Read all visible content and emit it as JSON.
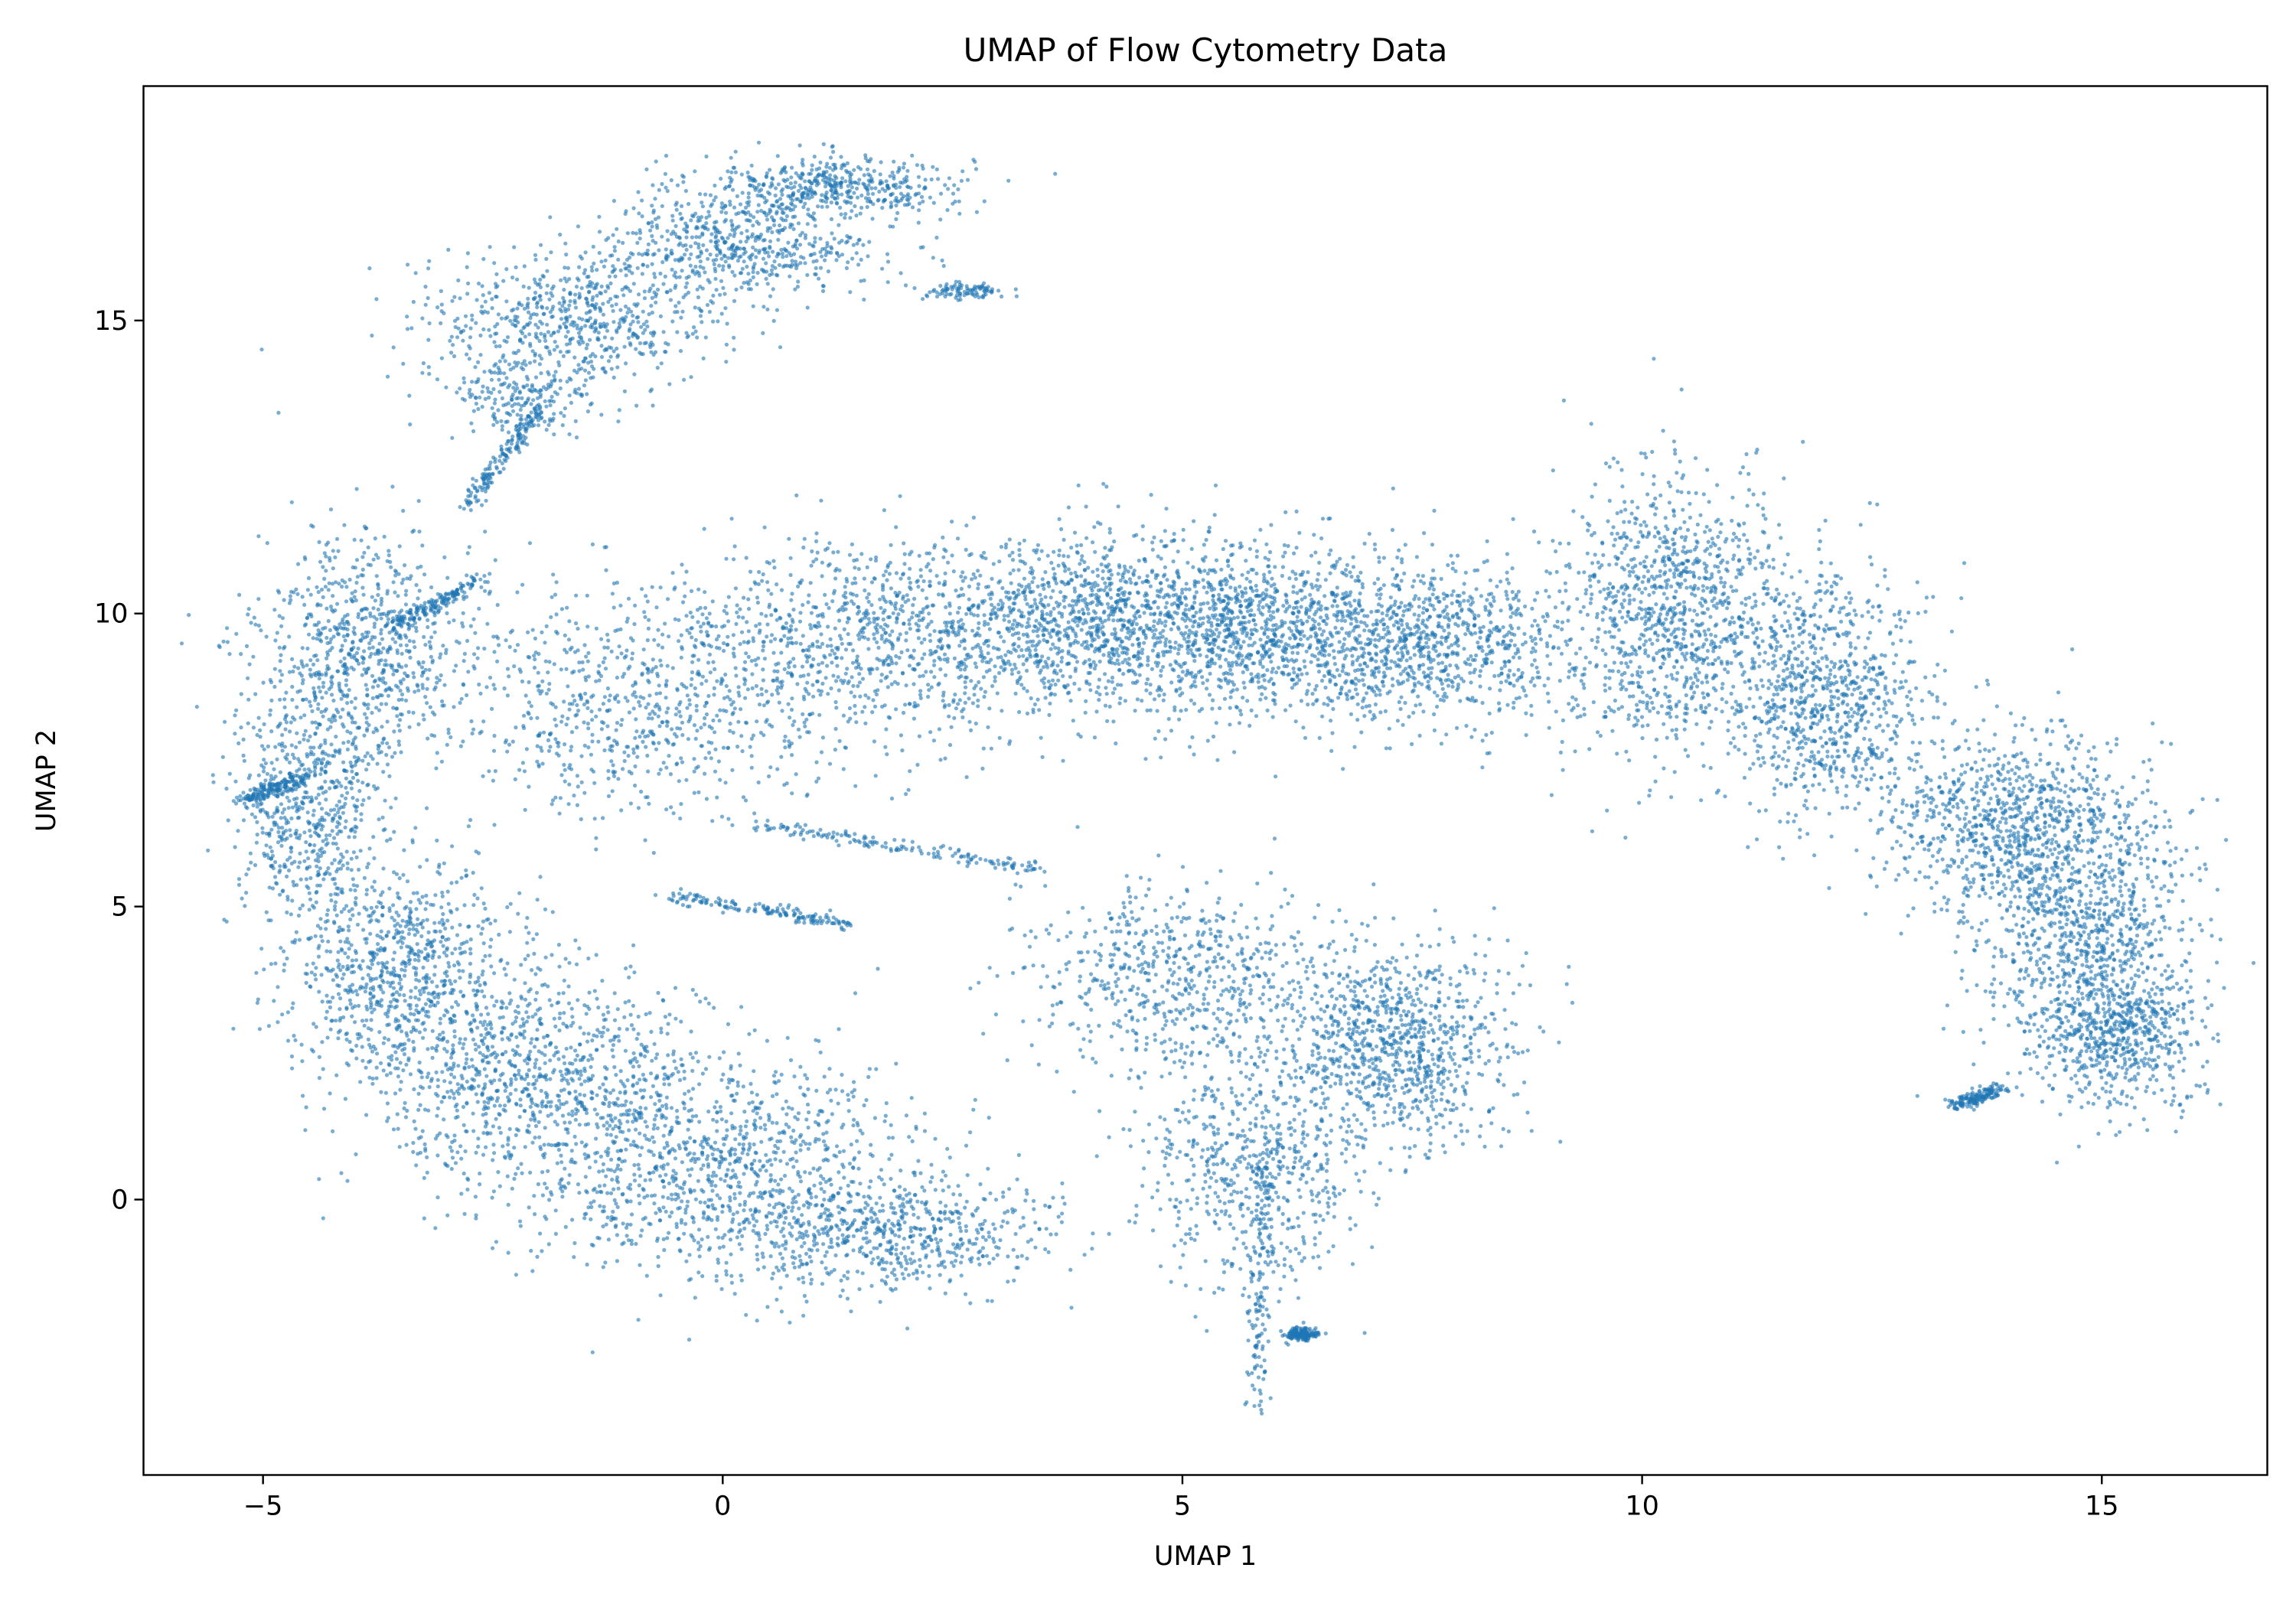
{
  "chart_data": {
    "type": "scatter",
    "title": "UMAP of Flow Cytometry Data",
    "xlabel": "UMAP 1",
    "ylabel": "UMAP 2",
    "xlim": [
      -6.3,
      16.8
    ],
    "ylim": [
      -4.7,
      19.0
    ],
    "xticks": [
      -5,
      0,
      5,
      10,
      15
    ],
    "yticks": [
      0,
      5,
      10,
      15
    ],
    "xtick_labels": [
      "−5",
      "0",
      "5",
      "10",
      "15"
    ],
    "ytick_labels": [
      "0",
      "5",
      "10",
      "15"
    ],
    "grid": false,
    "legend": false,
    "marker_color": "#1f77b4",
    "series": [
      {
        "values_format": "[x, y, spread_x, spread_y, relative_density]",
        "clusters": [
          [
            1.2,
            17.3,
            1.0,
            0.35,
            5
          ],
          [
            0.2,
            16.3,
            1.0,
            0.55,
            6
          ],
          [
            -1.6,
            15.0,
            1.1,
            0.75,
            7
          ],
          [
            -2.2,
            13.6,
            0.5,
            0.5,
            2
          ],
          [
            2.6,
            15.5,
            0.3,
            0.1,
            1
          ],
          [
            -3.9,
            9.4,
            0.8,
            1.3,
            8
          ],
          [
            -4.5,
            6.8,
            0.5,
            1.2,
            6
          ],
          [
            -3.5,
            4.0,
            0.9,
            1.2,
            9
          ],
          [
            -2.0,
            2.0,
            1.2,
            1.3,
            10
          ],
          [
            0.0,
            0.5,
            1.5,
            1.3,
            11
          ],
          [
            1.8,
            -0.6,
            1.2,
            0.6,
            6
          ],
          [
            -1.0,
            8.5,
            1.2,
            1.2,
            7
          ],
          [
            1.5,
            9.5,
            1.5,
            1.2,
            10
          ],
          [
            4.0,
            9.9,
            1.3,
            1.0,
            12
          ],
          [
            6.0,
            9.6,
            1.2,
            1.0,
            11
          ],
          [
            7.8,
            9.5,
            1.0,
            0.9,
            8
          ],
          [
            5.0,
            3.8,
            1.2,
            1.0,
            7
          ],
          [
            7.3,
            2.6,
            0.8,
            1.1,
            10
          ],
          [
            5.7,
            0.5,
            0.8,
            1.3,
            6
          ],
          [
            10.3,
            10.0,
            0.8,
            1.6,
            11
          ],
          [
            12.0,
            8.5,
            0.7,
            1.4,
            9
          ],
          [
            14.0,
            6.5,
            0.9,
            1.0,
            9
          ],
          [
            14.8,
            4.5,
            0.8,
            1.5,
            10
          ],
          [
            15.2,
            2.8,
            0.6,
            0.8,
            6
          ]
        ],
        "trails": [
          [
            [
              -5.2,
              6.8
            ],
            [
              -4.6,
              7.2
            ]
          ],
          [
            [
              0.4,
              6.4
            ],
            [
              3.5,
              5.6
            ]
          ],
          [
            [
              -0.6,
              5.2
            ],
            [
              1.4,
              4.7
            ]
          ],
          [
            [
              -3.6,
              9.8
            ],
            [
              -2.6,
              10.6
            ]
          ],
          [
            [
              -2.8,
              11.8
            ],
            [
              -2.0,
              13.5
            ]
          ],
          [
            [
              5.9,
              0.6
            ],
            [
              5.8,
              -3.6
            ]
          ],
          [
            [
              6.2,
              -2.3
            ],
            [
              6.4,
              -2.3
            ]
          ],
          [
            [
              13.4,
              1.6
            ],
            [
              13.9,
              1.9
            ]
          ]
        ]
      }
    ]
  }
}
